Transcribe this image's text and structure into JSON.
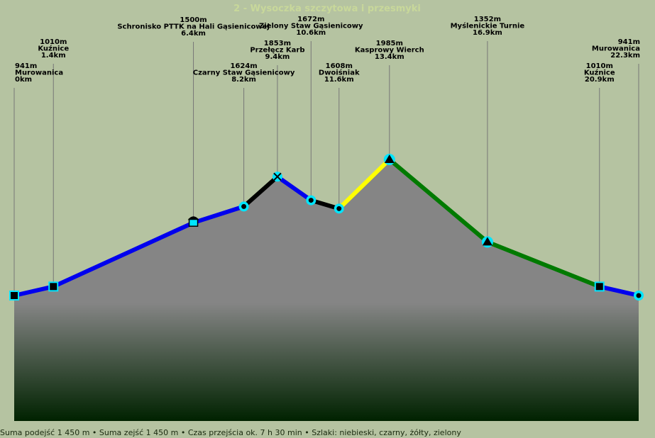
{
  "chart_data": {
    "type": "area",
    "title": "2 - Wysoczka szczytowa i przesmyki",
    "xlabel": "",
    "ylabel": "",
    "x_unit": "km",
    "y_unit": "m",
    "xlim": [
      0,
      22.3
    ],
    "ylim": [
      900,
      2040
    ],
    "grid": false,
    "legend": "none",
    "colors": {
      "background": "#b5c3a1",
      "fill_top": "#858585",
      "fill_bottom": "#002200",
      "marker_fill": "#00e5ff",
      "blue": "#0000ee",
      "black": "#000000",
      "yellow": "#ffff00",
      "green": "#007a00"
    },
    "points": [
      {
        "name": "Murowanica",
        "dist_km": 0,
        "elevation_m": 941,
        "dist_label": "0km",
        "ele_label": "941m",
        "marker": "square"
      },
      {
        "name": "Kuźnice",
        "dist_km": 1.4,
        "elevation_m": 1010,
        "dist_label": "1.4km",
        "ele_label": "1010m",
        "marker": "square"
      },
      {
        "name": "Schronisko PTTK na Hali Gąsienicowej",
        "dist_km": 6.4,
        "elevation_m": 1500,
        "dist_label": "6.4km",
        "ele_label": "1500m",
        "marker": "hut"
      },
      {
        "name": "Czarny Staw Gąsienicowy",
        "dist_km": 8.2,
        "elevation_m": 1624,
        "dist_label": "8.2km",
        "ele_label": "1624m",
        "marker": "circle"
      },
      {
        "name": "Przełęcz Karb",
        "dist_km": 9.4,
        "elevation_m": 1853,
        "dist_label": "9.4km",
        "ele_label": "1853m",
        "marker": "cross"
      },
      {
        "name": "Zielony Staw Gąsienicowy",
        "dist_km": 10.6,
        "elevation_m": 1672,
        "dist_label": "10.6km",
        "ele_label": "1672m",
        "marker": "circle"
      },
      {
        "name": "Dwoiśniak",
        "dist_km": 11.6,
        "elevation_m": 1608,
        "dist_label": "11.6km",
        "ele_label": "1608m",
        "marker": "circle"
      },
      {
        "name": "Kasprowy Wierch",
        "dist_km": 13.4,
        "elevation_m": 1985,
        "dist_label": "13.4km",
        "ele_label": "1985m",
        "marker": "triangle"
      },
      {
        "name": "Myślenickie Turnie",
        "dist_km": 16.9,
        "elevation_m": 1352,
        "dist_label": "16.9km",
        "ele_label": "1352m",
        "marker": "triangle"
      },
      {
        "name": "Kuźnice",
        "dist_km": 20.9,
        "elevation_m": 1010,
        "dist_label": "20.9km",
        "ele_label": "1010m",
        "marker": "square"
      },
      {
        "name": "Murowanica",
        "dist_km": 22.3,
        "elevation_m": 941,
        "dist_label": "22.3km",
        "ele_label": "941m",
        "marker": "circle"
      }
    ],
    "segments": [
      {
        "from": 0,
        "to": 1,
        "color": "blue"
      },
      {
        "from": 1,
        "to": 2,
        "color": "blue"
      },
      {
        "from": 2,
        "to": 3,
        "color": "blue"
      },
      {
        "from": 3,
        "to": 4,
        "color": "black"
      },
      {
        "from": 4,
        "to": 5,
        "color": "blue"
      },
      {
        "from": 5,
        "to": 6,
        "color": "black"
      },
      {
        "from": 6,
        "to": 7,
        "color": "yellow"
      },
      {
        "from": 7,
        "to": 8,
        "color": "green"
      },
      {
        "from": 8,
        "to": 9,
        "color": "green"
      },
      {
        "from": 9,
        "to": 10,
        "color": "blue"
      }
    ],
    "footer": "Suma podejść 1 450 m • Suma zejść 1 450 m • Czas przejścia ok. 7 h 30 min • Szlaki: niebieski, czarny, żółty, zielony"
  }
}
